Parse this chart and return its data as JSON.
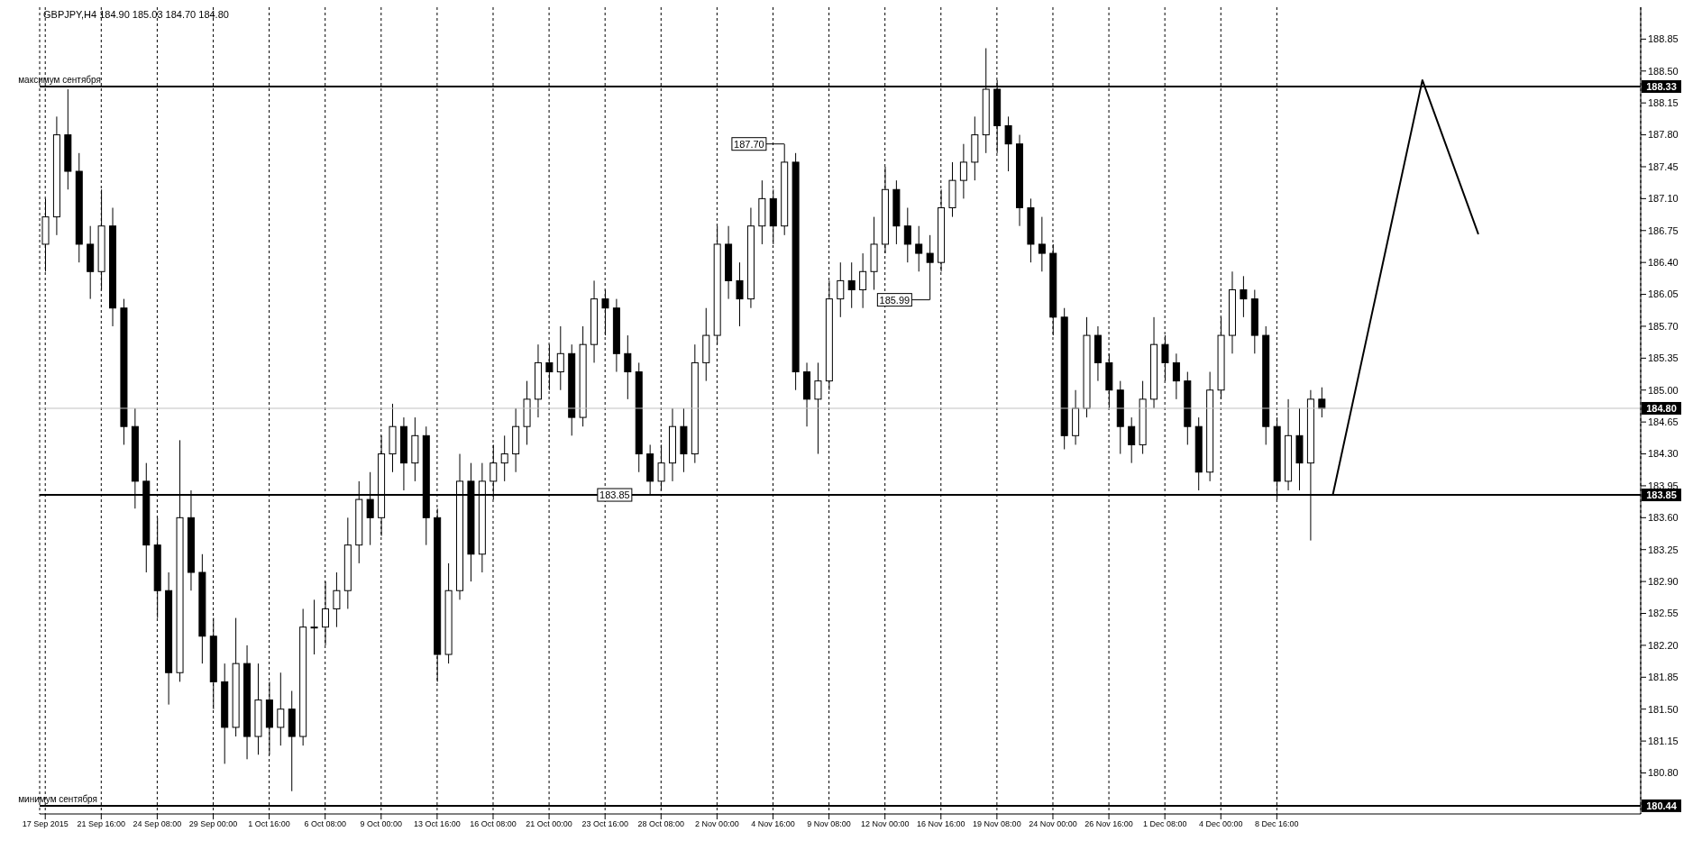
{
  "chart_data": {
    "type": "candlestick",
    "title": "GBPJPY,H4  184.90 185.03 184.70 184.80",
    "categories": [
      "17 Sep 2015",
      null,
      null,
      null,
      null,
      "21 Sep 16:00",
      null,
      null,
      null,
      null,
      "24 Sep 08:00",
      null,
      null,
      null,
      null,
      "29 Sep 00:00",
      null,
      null,
      null,
      null,
      "1 Oct 16:00",
      null,
      null,
      null,
      null,
      "6 Oct 08:00",
      null,
      null,
      null,
      null,
      "9 Oct 00:00",
      null,
      null,
      null,
      null,
      "13 Oct 16:00",
      null,
      null,
      null,
      null,
      "16 Oct 08:00",
      null,
      null,
      null,
      null,
      "21 Oct 00:00",
      null,
      null,
      null,
      null,
      "23 Oct 16:00",
      null,
      null,
      null,
      null,
      "28 Oct 08:00",
      null,
      null,
      null,
      null,
      "2 Nov 00:00",
      null,
      null,
      null,
      null,
      "4 Nov 16:00",
      null,
      null,
      null,
      null,
      "9 Nov 08:00",
      null,
      null,
      null,
      null,
      "12 Nov 00:00",
      null,
      null,
      null,
      null,
      "16 Nov 16:00",
      null,
      null,
      null,
      null,
      "19 Nov 08:00",
      null,
      null,
      null,
      null,
      "24 Nov 00:00",
      null,
      null,
      null,
      null,
      "26 Nov 16:00",
      null,
      null,
      null,
      null,
      "1 Dec 08:00",
      null,
      null,
      null,
      null,
      "4 Dec 00:00",
      null,
      null,
      null,
      null,
      "8 Dec 16:00",
      null,
      null,
      null,
      null,
      null,
      null,
      null,
      null,
      null,
      null,
      null,
      null,
      null,
      null,
      null,
      null,
      null,
      null,
      null,
      null,
      null,
      null,
      null,
      null,
      null,
      null,
      null,
      null,
      null,
      null,
      null,
      null
    ],
    "ohlc": [
      [
        186.6,
        187.1,
        186.3,
        186.9
      ],
      [
        186.9,
        188.0,
        186.7,
        187.8
      ],
      [
        187.8,
        188.3,
        187.2,
        187.4
      ],
      [
        187.4,
        187.6,
        186.4,
        186.6
      ],
      [
        186.6,
        186.8,
        186.0,
        186.3
      ],
      [
        186.3,
        187.2,
        186.1,
        186.8
      ],
      [
        186.8,
        187.0,
        185.7,
        185.9
      ],
      [
        185.9,
        186.0,
        184.4,
        184.6
      ],
      [
        184.6,
        184.8,
        183.7,
        184.0
      ],
      [
        184.0,
        184.2,
        183.0,
        183.3
      ],
      [
        183.3,
        183.6,
        182.5,
        182.8
      ],
      [
        182.8,
        183.0,
        181.55,
        181.9
      ],
      [
        181.9,
        184.45,
        181.8,
        183.6
      ],
      [
        183.6,
        183.9,
        182.8,
        183.0
      ],
      [
        183.0,
        183.2,
        182.0,
        182.3
      ],
      [
        182.3,
        182.5,
        181.5,
        181.8
      ],
      [
        181.8,
        182.0,
        180.9,
        181.3
      ],
      [
        181.3,
        182.5,
        181.2,
        182.0
      ],
      [
        182.0,
        182.2,
        180.95,
        181.2
      ],
      [
        181.2,
        182.0,
        181.0,
        181.6
      ],
      [
        181.6,
        181.8,
        181.0,
        181.3
      ],
      [
        181.3,
        181.9,
        181.1,
        181.5
      ],
      [
        181.5,
        181.7,
        180.6,
        181.2
      ],
      [
        181.2,
        182.6,
        181.1,
        182.4
      ],
      [
        182.4,
        182.7,
        182.1,
        182.4
      ],
      [
        182.4,
        182.9,
        182.2,
        182.6
      ],
      [
        182.6,
        183.0,
        182.4,
        182.8
      ],
      [
        182.8,
        183.6,
        182.6,
        183.3
      ],
      [
        183.3,
        184.0,
        183.1,
        183.8
      ],
      [
        183.8,
        184.1,
        183.3,
        183.6
      ],
      [
        183.6,
        184.5,
        183.4,
        184.3
      ],
      [
        184.3,
        184.85,
        184.1,
        184.6
      ],
      [
        184.6,
        184.7,
        183.9,
        184.2
      ],
      [
        184.2,
        184.7,
        184.0,
        184.5
      ],
      [
        184.5,
        184.6,
        183.3,
        183.6
      ],
      [
        183.6,
        183.7,
        181.8,
        182.1
      ],
      [
        182.1,
        183.1,
        182.0,
        182.8
      ],
      [
        182.8,
        184.3,
        182.7,
        184.0
      ],
      [
        184.0,
        184.2,
        182.9,
        183.2
      ],
      [
        183.2,
        184.2,
        183.0,
        184.0
      ],
      [
        184.0,
        184.4,
        183.8,
        184.2
      ],
      [
        184.2,
        184.5,
        184.0,
        184.3
      ],
      [
        184.3,
        184.8,
        184.1,
        184.6
      ],
      [
        184.6,
        185.1,
        184.4,
        184.9
      ],
      [
        184.9,
        185.5,
        184.7,
        185.3
      ],
      [
        185.3,
        185.5,
        185.0,
        185.2
      ],
      [
        185.2,
        185.7,
        185.0,
        185.4
      ],
      [
        185.4,
        185.5,
        184.5,
        184.7
      ],
      [
        184.7,
        185.7,
        184.6,
        185.5
      ],
      [
        185.5,
        186.2,
        185.3,
        186.0
      ],
      [
        186.0,
        186.1,
        185.6,
        185.9
      ],
      [
        185.9,
        186.0,
        185.2,
        185.4
      ],
      [
        185.4,
        185.6,
        184.9,
        185.2
      ],
      [
        185.2,
        185.3,
        184.1,
        184.3
      ],
      [
        184.3,
        184.4,
        183.85,
        184.0
      ],
      [
        184.0,
        184.4,
        183.9,
        184.2
      ],
      [
        184.2,
        184.8,
        184.0,
        184.6
      ],
      [
        184.6,
        184.8,
        184.1,
        184.3
      ],
      [
        184.3,
        185.5,
        184.2,
        185.3
      ],
      [
        185.3,
        185.9,
        185.1,
        185.6
      ],
      [
        185.6,
        186.8,
        185.5,
        186.6
      ],
      [
        186.6,
        186.8,
        186.0,
        186.2
      ],
      [
        186.2,
        186.4,
        185.7,
        186.0
      ],
      [
        186.0,
        187.0,
        185.9,
        186.8
      ],
      [
        186.8,
        187.3,
        186.6,
        187.1
      ],
      [
        187.1,
        187.2,
        186.6,
        186.8
      ],
      [
        186.8,
        187.7,
        186.7,
        187.5
      ],
      [
        187.5,
        187.6,
        185.0,
        185.2
      ],
      [
        185.2,
        185.3,
        184.6,
        184.9
      ],
      [
        184.9,
        185.3,
        184.3,
        185.1
      ],
      [
        185.1,
        186.2,
        185.0,
        186.0
      ],
      [
        186.0,
        186.4,
        185.8,
        186.2
      ],
      [
        186.2,
        186.4,
        185.9,
        186.1
      ],
      [
        186.1,
        186.5,
        185.9,
        186.3
      ],
      [
        186.3,
        186.9,
        186.1,
        186.6
      ],
      [
        186.6,
        187.45,
        186.5,
        187.2
      ],
      [
        187.2,
        187.3,
        186.6,
        186.8
      ],
      [
        186.8,
        187.0,
        186.4,
        186.6
      ],
      [
        186.6,
        186.8,
        186.3,
        186.5
      ],
      [
        186.5,
        186.7,
        185.99,
        186.4
      ],
      [
        186.4,
        187.2,
        186.3,
        187.0
      ],
      [
        187.0,
        187.5,
        186.9,
        187.3
      ],
      [
        187.3,
        187.7,
        187.1,
        187.5
      ],
      [
        187.5,
        188.0,
        187.3,
        187.8
      ],
      [
        187.8,
        188.75,
        187.6,
        188.3
      ],
      [
        188.3,
        188.4,
        187.6,
        187.9
      ],
      [
        187.9,
        188.0,
        187.4,
        187.7
      ],
      [
        187.7,
        187.8,
        186.8,
        187.0
      ],
      [
        187.0,
        187.1,
        186.4,
        186.6
      ],
      [
        186.6,
        186.9,
        186.3,
        186.5
      ],
      [
        186.5,
        186.6,
        185.6,
        185.8
      ],
      [
        185.8,
        185.9,
        184.35,
        184.5
      ],
      [
        184.5,
        185.0,
        184.4,
        184.8
      ],
      [
        184.8,
        185.8,
        184.7,
        185.6
      ],
      [
        185.6,
        185.7,
        185.1,
        185.3
      ],
      [
        185.3,
        185.4,
        184.8,
        185.0
      ],
      [
        185.0,
        185.1,
        184.3,
        184.6
      ],
      [
        184.6,
        184.7,
        184.2,
        184.4
      ],
      [
        184.4,
        185.1,
        184.3,
        184.9
      ],
      [
        184.9,
        185.8,
        184.8,
        185.5
      ],
      [
        185.5,
        185.6,
        185.1,
        185.3
      ],
      [
        185.3,
        185.4,
        184.9,
        185.1
      ],
      [
        185.1,
        185.2,
        184.4,
        184.6
      ],
      [
        184.6,
        184.7,
        183.9,
        184.1
      ],
      [
        184.1,
        185.2,
        184.0,
        185.0
      ],
      [
        185.0,
        185.8,
        184.9,
        185.6
      ],
      [
        185.6,
        186.3,
        185.4,
        186.1
      ],
      [
        186.1,
        186.25,
        185.8,
        186.0
      ],
      [
        186.0,
        186.1,
        185.4,
        185.6
      ],
      [
        185.6,
        185.7,
        184.4,
        184.6
      ],
      [
        184.6,
        184.7,
        183.8,
        184.0
      ],
      [
        184.0,
        184.9,
        183.9,
        184.5
      ],
      [
        184.5,
        184.8,
        183.9,
        184.2
      ],
      [
        184.2,
        185.0,
        183.35,
        184.9
      ],
      [
        184.9,
        185.03,
        184.7,
        184.8
      ],
      null,
      null,
      null,
      null,
      null,
      null,
      null,
      null,
      null,
      null,
      null,
      null,
      null,
      null,
      null,
      null,
      null,
      null,
      null,
      null,
      null,
      null,
      null,
      null,
      null,
      null,
      null,
      null
    ],
    "series": [
      {
        "type": "line",
        "color": "#000000",
        "values": [
          null,
          null,
          null,
          null,
          null,
          null,
          null,
          null,
          null,
          null,
          null,
          null,
          null,
          null,
          null,
          null,
          null,
          null,
          null,
          null,
          null,
          null,
          null,
          null,
          null,
          null,
          null,
          null,
          null,
          null,
          null,
          null,
          null,
          null,
          null,
          null,
          null,
          null,
          null,
          null,
          null,
          null,
          null,
          null,
          null,
          null,
          null,
          null,
          null,
          null,
          null,
          null,
          null,
          null,
          null,
          null,
          null,
          null,
          null,
          null,
          null,
          null,
          null,
          null,
          null,
          null,
          null,
          null,
          null,
          null,
          null,
          null,
          null,
          null,
          null,
          null,
          null,
          null,
          null,
          null,
          null,
          null,
          null,
          null,
          null,
          null,
          null,
          null,
          null,
          null,
          null,
          null,
          null,
          null,
          null,
          null,
          null,
          null,
          null,
          null,
          null,
          null,
          null,
          null,
          null,
          null,
          null,
          null,
          null,
          null,
          null,
          null,
          null,
          null,
          null,
          183.85,
          null,
          null,
          null,
          null,
          null,
          null,
          null,
          188.4,
          null,
          null,
          null,
          null,
          186.71,
          null,
          null,
          null,
          null,
          null,
          null,
          null,
          null,
          null,
          null,
          null,
          null,
          null,
          null
        ]
      }
    ],
    "ylim": [
      180.35,
      189.2
    ],
    "yticks": [
      {
        "value": 180.8,
        "label": "180.80"
      },
      181.15,
      {
        "value": 181.5,
        "label": "181.50"
      },
      181.85,
      {
        "value": 182.2,
        "label": "182.20"
      },
      182.55,
      {
        "value": 182.9,
        "label": "182.90"
      },
      183.25,
      {
        "value": 183.6,
        "label": "183.60"
      },
      183.95,
      {
        "value": 184.3,
        "label": "184.30"
      },
      184.65,
      {
        "value": 185,
        "label": "185.00"
      },
      185.35,
      {
        "value": 185.7,
        "label": "185.70"
      },
      186.05,
      {
        "value": 186.4,
        "label": "186.40"
      },
      186.75,
      {
        "value": 187.1,
        "label": "187.10"
      },
      187.45,
      {
        "value": 187.8,
        "label": "187.80"
      },
      188.15,
      {
        "value": 188.5,
        "label": "188.50"
      },
      188.85
    ],
    "grid": "x",
    "ref_lines": [
      {
        "axis": "y",
        "value": 188.33,
        "label": "188.33",
        "color": "#000000"
      },
      {
        "axis": "y",
        "value": 183.85,
        "label": "183.85",
        "color": "#000000"
      },
      {
        "axis": "y",
        "value": 180.44,
        "label": "180.44",
        "color": "#000000"
      },
      {
        "axis": "y",
        "value": 184.8,
        "label": "184.80",
        "color": "#c0c0c0"
      }
    ],
    "annotations": [
      {
        "text": "максимум сентября",
        "y": 188.33
      },
      {
        "text": "минимум сентября",
        "y": 180.44
      },
      {
        "text": "187.70",
        "y": 187.7
      },
      {
        "text": "185.99",
        "y": 185.99
      },
      {
        "text": "183.85",
        "y": 183.85
      }
    ]
  }
}
